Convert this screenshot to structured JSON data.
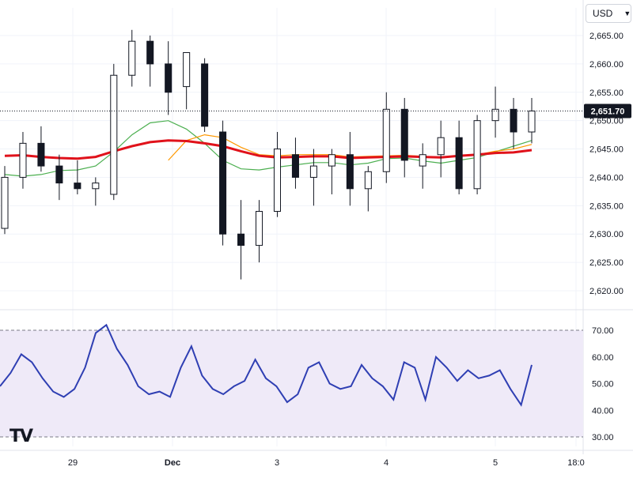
{
  "toolbar": {
    "currency": "USD"
  },
  "brand": {
    "logo_text": "TV"
  },
  "colors": {
    "up": "#ffffff",
    "down": "#131722",
    "outline": "#131722",
    "ma_long": "#e0121b",
    "ma_short": "#4caf50",
    "ma_mid": "#ff9800",
    "rsi_line": "#2f3fb3",
    "rsi_band": "#efeaf8",
    "grid": "#f0f3fa"
  },
  "chart_data": [
    {
      "type": "candlestick",
      "title": "",
      "y_ticks": [
        "2,665.00",
        "2,660.00",
        "2,655.00",
        "2,650.00",
        "2,645.00",
        "2,640.00",
        "2,635.00",
        "2,630.00",
        "2,625.00",
        "2,620.00"
      ],
      "ylim": [
        2617,
        2668
      ],
      "last_price_label": "2,651.70",
      "last_price": 2651.7,
      "x_ticks": [
        "29",
        "Dec",
        "3",
        "4",
        "5",
        "18:0"
      ],
      "moving_averages": [
        {
          "color": "red",
          "values": [
            2643.8,
            2643.9,
            2643.6,
            2643.4,
            2643.3,
            2643.6,
            2644.6,
            2645.5,
            2646.2,
            2646.5,
            2646.4,
            2646.0,
            2645.5,
            2644.6,
            2643.8,
            2643.5,
            2643.6,
            2643.7,
            2643.7,
            2643.4,
            2643.5,
            2643.6,
            2643.7,
            2643.6,
            2643.5,
            2643.8,
            2644.0,
            2644.3,
            2644.4,
            2644.8
          ]
        },
        {
          "color": "green",
          "values": [
            2640.5,
            2640.2,
            2640.5,
            2641.2,
            2641.3,
            2642.0,
            2644.5,
            2647.5,
            2649.6,
            2650.0,
            2648.5,
            2646.0,
            2643.0,
            2641.5,
            2641.3,
            2641.8,
            2642.2,
            2642.6,
            2642.6,
            2642.2,
            2642.5,
            2643.3,
            2643.4,
            2642.9,
            2642.5,
            2643.0,
            2643.5,
            2644.5,
            2645.5,
            2646.5
          ]
        },
        {
          "color": "orange",
          "values": [
            null,
            null,
            null,
            null,
            null,
            null,
            null,
            null,
            null,
            2643.0,
            2646.5,
            2647.5,
            2647.0,
            2645.3,
            2644.0,
            2643.8,
            2644.0,
            2644.0,
            2644.0,
            2643.6,
            2643.7,
            2643.8,
            2643.9,
            2643.7,
            2643.5,
            2643.8,
            2644.0,
            2644.6,
            2645.0,
            2645.8
          ]
        }
      ],
      "candles": [
        {
          "o": 2631,
          "h": 2642,
          "l": 2630,
          "c": 2640
        },
        {
          "o": 2640,
          "h": 2648,
          "l": 2638,
          "c": 2646
        },
        {
          "o": 2646,
          "h": 2649,
          "l": 2641,
          "c": 2642
        },
        {
          "o": 2642,
          "h": 2644,
          "l": 2636,
          "c": 2639
        },
        {
          "o": 2639,
          "h": 2643,
          "l": 2637,
          "c": 2638
        },
        {
          "o": 2638,
          "h": 2640,
          "l": 2635,
          "c": 2639
        },
        {
          "o": 2637,
          "h": 2660,
          "l": 2636,
          "c": 2658
        },
        {
          "o": 2658,
          "h": 2666,
          "l": 2656,
          "c": 2664
        },
        {
          "o": 2664,
          "h": 2665,
          "l": 2656,
          "c": 2660
        },
        {
          "o": 2660,
          "h": 2664,
          "l": 2651,
          "c": 2655
        },
        {
          "o": 2656,
          "h": 2662,
          "l": 2652,
          "c": 2662
        },
        {
          "o": 2660,
          "h": 2661,
          "l": 2648,
          "c": 2649
        },
        {
          "o": 2648,
          "h": 2650,
          "l": 2628,
          "c": 2630
        },
        {
          "o": 2630,
          "h": 2636,
          "l": 2622,
          "c": 2628
        },
        {
          "o": 2628,
          "h": 2636,
          "l": 2625,
          "c": 2634
        },
        {
          "o": 2634,
          "h": 2648,
          "l": 2633,
          "c": 2645
        },
        {
          "o": 2644,
          "h": 2647,
          "l": 2638,
          "c": 2640
        },
        {
          "o": 2640,
          "h": 2645,
          "l": 2635,
          "c": 2642
        },
        {
          "o": 2642,
          "h": 2645,
          "l": 2637,
          "c": 2644
        },
        {
          "o": 2644,
          "h": 2648,
          "l": 2635,
          "c": 2638
        },
        {
          "o": 2638,
          "h": 2642,
          "l": 2634,
          "c": 2641
        },
        {
          "o": 2641,
          "h": 2655,
          "l": 2639,
          "c": 2652
        },
        {
          "o": 2652,
          "h": 2654,
          "l": 2640,
          "c": 2643
        },
        {
          "o": 2642,
          "h": 2646,
          "l": 2638,
          "c": 2644
        },
        {
          "o": 2644,
          "h": 2650,
          "l": 2640,
          "c": 2647
        },
        {
          "o": 2647,
          "h": 2650,
          "l": 2637,
          "c": 2638
        },
        {
          "o": 2638,
          "h": 2651,
          "l": 2637,
          "c": 2650
        },
        {
          "o": 2650,
          "h": 2656,
          "l": 2647,
          "c": 2652
        },
        {
          "o": 2652,
          "h": 2654,
          "l": 2645,
          "c": 2648
        },
        {
          "o": 2648,
          "h": 2654,
          "l": 2646,
          "c": 2651.7
        }
      ]
    },
    {
      "type": "line",
      "title": "",
      "indicator": "RSI",
      "y_ticks": [
        "70.00",
        "60.00",
        "50.00",
        "40.00",
        "30.00"
      ],
      "ylim": [
        28,
        73
      ],
      "band": [
        30,
        70
      ],
      "series": [
        {
          "values": [
            49,
            54,
            61,
            58,
            52,
            47,
            45,
            48,
            56,
            69,
            72,
            63,
            57,
            49,
            46,
            47,
            45,
            56,
            64,
            53,
            48,
            46,
            49,
            51,
            59,
            52,
            49,
            43,
            46,
            56,
            58,
            50,
            48,
            49,
            57,
            52,
            49,
            44,
            58,
            56,
            44,
            60,
            56,
            51,
            55,
            52,
            53,
            55,
            48,
            42,
            57
          ]
        }
      ]
    }
  ]
}
